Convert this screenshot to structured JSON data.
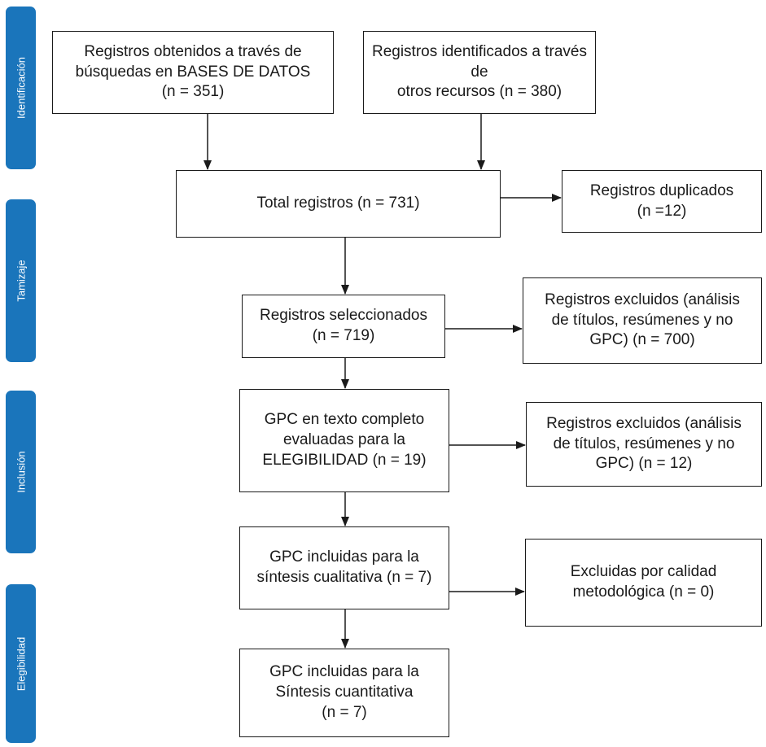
{
  "phases": [
    {
      "id": "identificacion",
      "label": "Identificación"
    },
    {
      "id": "tamizaje",
      "label": "Tamizaje"
    },
    {
      "id": "inclusion",
      "label": "Inclusión"
    },
    {
      "id": "elegibilidad",
      "label": "Elegibilidad"
    }
  ],
  "boxes": {
    "db_records": "Registros obtenidos a través de\nbúsquedas en BASES DE DATOS\n(n = 351)",
    "other_records": "Registros identificados a través de\notros recursos (n = 380)",
    "total_records": "Total registros (n = 731)",
    "duplicates": "Registros duplicados\n(n =12)",
    "selected": "Registros seleccionados\n(n = 719)",
    "excluded_screening": "Registros excluidos (análisis\nde títulos, resúmenes y no\nGPC) (n = 700)",
    "full_text": "GPC en texto completo\nevaluadas para la\nELEGIBILIDAD (n = 19)",
    "excluded_inclusion": "Registros excluidos (análisis\nde títulos, resúmenes y no\nGPC) (n = 12)",
    "qualitative": "GPC incluidas para la\nsíntesis cualitativa (n = 7)",
    "excluded_quality": "Excluidas por calidad\nmetodológica (n = 0)",
    "quantitative": "GPC incluidas para la\nSíntesis cuantitativa\n(n = 7)"
  },
  "colors": {
    "phase_fill": "#1a75bb",
    "phase_text": "#ffffff",
    "box_border": "#1a1a1a",
    "arrow": "#1a1a1a"
  }
}
